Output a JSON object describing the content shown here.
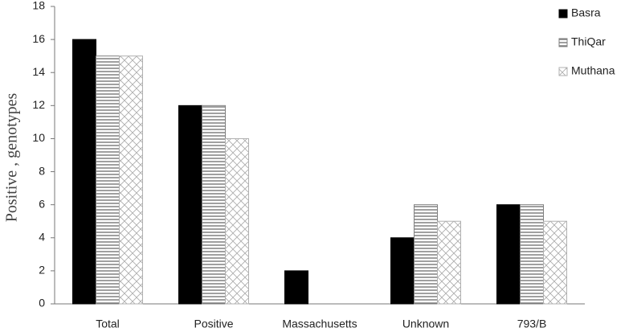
{
  "chart_data": {
    "type": "bar",
    "y_label": "Positive , genotypes",
    "categories": [
      "Total",
      "Positive",
      "Massachusetts",
      "Unknown",
      "793/B"
    ],
    "series": [
      {
        "name": "Basra",
        "color": "#000000",
        "values": [
          16,
          12,
          2,
          4,
          6
        ]
      },
      {
        "name": "ThiQar",
        "color": "#808080",
        "values": [
          15,
          12,
          0,
          6,
          6
        ]
      },
      {
        "name": "Muthana",
        "color": "#b0b0b0",
        "values": [
          15,
          10,
          0,
          5,
          5
        ]
      }
    ],
    "ylim": [
      0,
      18
    ],
    "yticks": [
      0,
      2,
      4,
      6,
      8,
      10,
      12,
      14,
      16,
      18
    ],
    "grid": false
  }
}
